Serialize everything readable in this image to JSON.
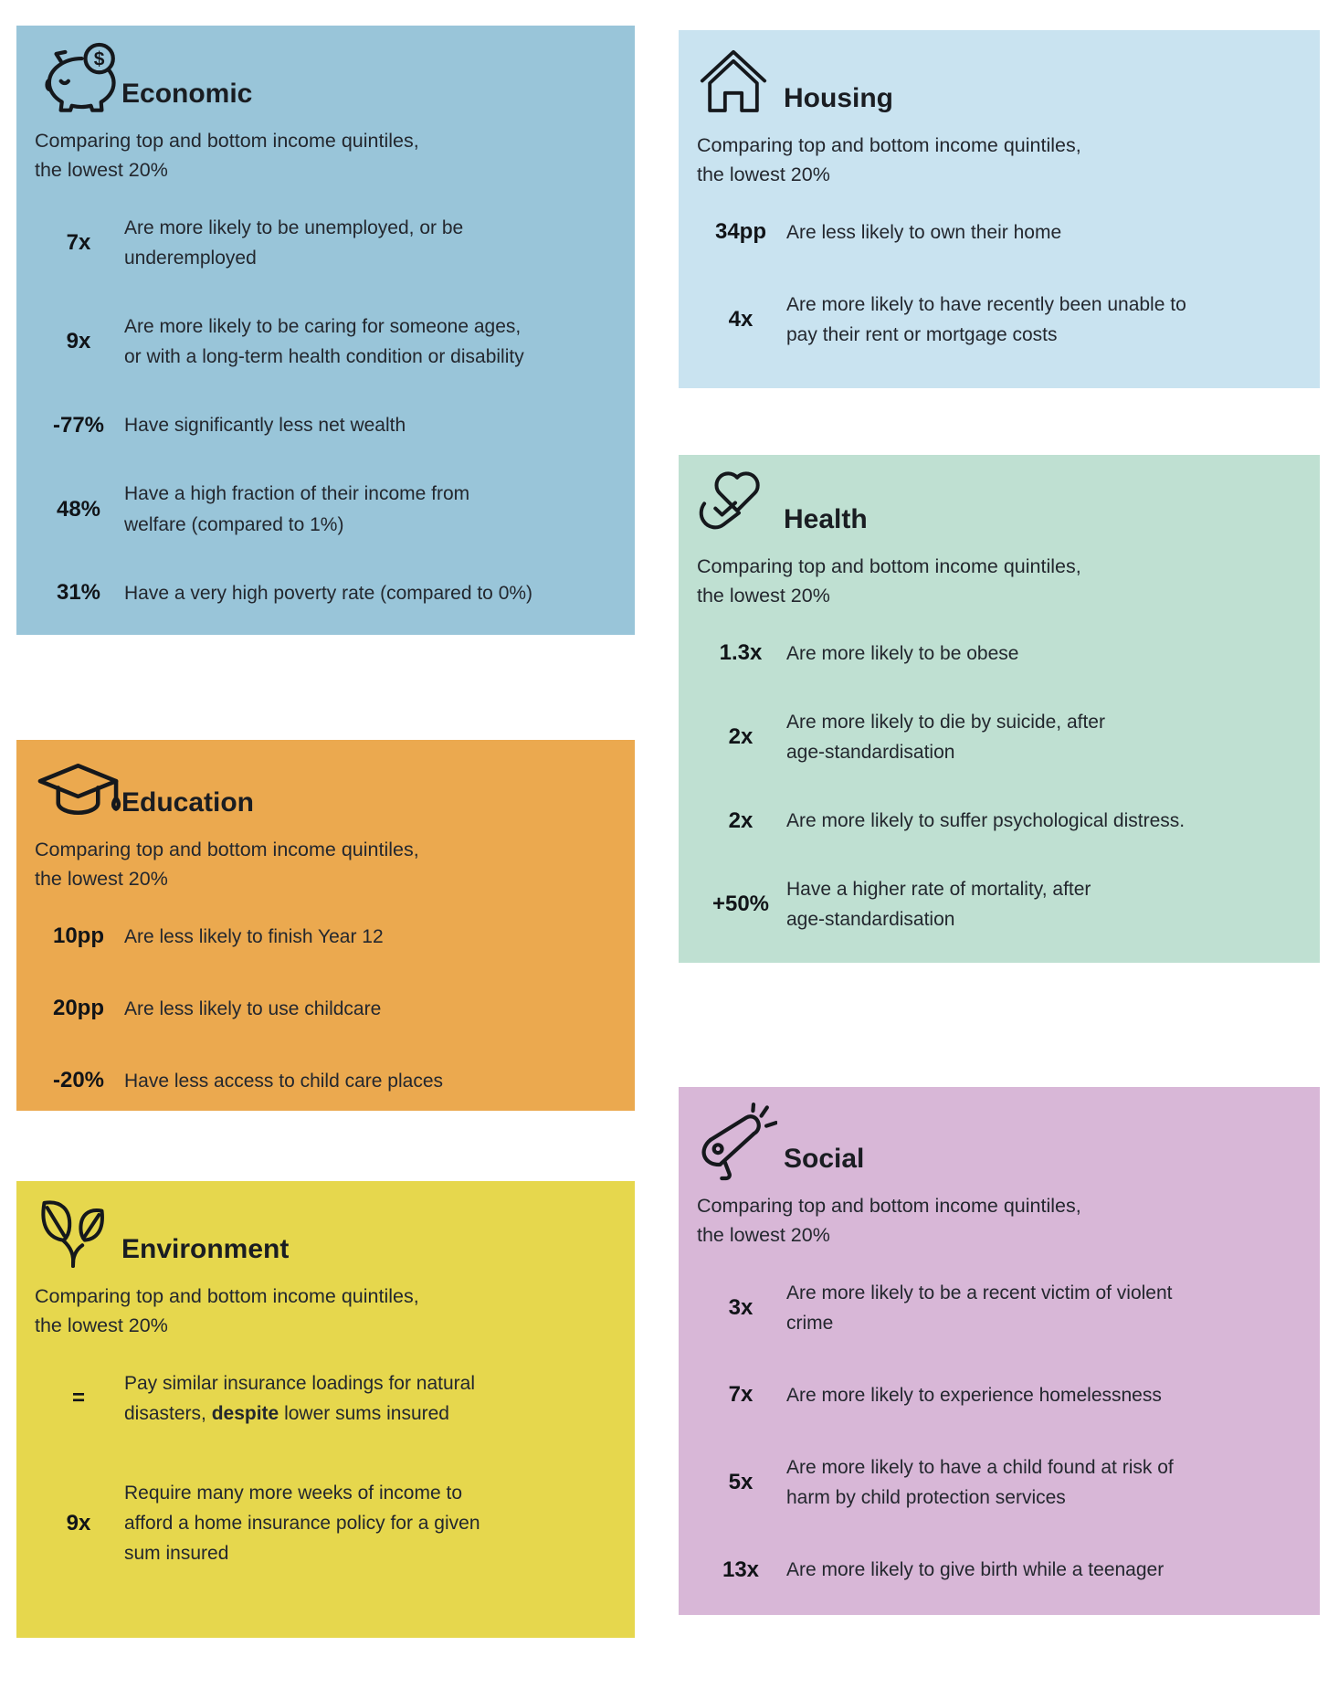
{
  "panels": [
    {
      "id": "economic",
      "title": "Economic",
      "icon": "piggy-bank-icon",
      "bg": "#99c5d9",
      "subtitle": "Comparing top and bottom income quintiles,\nthe lowest 20%",
      "rows": [
        {
          "stat": "7x",
          "desc": "Are more likely to be unemployed, or be\nunderemployed"
        },
        {
          "stat": "9x",
          "desc": "Are more likely to be caring for someone ages,\nor with a long-term health condition or disability"
        },
        {
          "stat": "-77%",
          "desc": "Have significantly less net wealth"
        },
        {
          "stat": "48%",
          "desc": "Have a high fraction of their income from\nwelfare (compared to 1%)"
        },
        {
          "stat": "31%",
          "desc": "Have a very high poverty rate (compared to 0%)"
        }
      ]
    },
    {
      "id": "housing",
      "title": "Housing",
      "icon": "home-icon",
      "bg": "#c9e3f0",
      "subtitle": "Comparing top and bottom income quintiles,\nthe lowest 20%",
      "rows": [
        {
          "stat": "34pp",
          "desc": "Are less likely to own their home"
        },
        {
          "stat": "4x",
          "desc": "Are more likely to have recently been unable to\npay their rent or mortgage costs"
        }
      ]
    },
    {
      "id": "education",
      "title": "Education",
      "icon": "graduation-cap-icon",
      "bg": "#eba94f",
      "subtitle": "Comparing top and bottom income quintiles,\nthe lowest 20%",
      "rows": [
        {
          "stat": "10pp",
          "desc": "Are less likely to finish Year 12"
        },
        {
          "stat": "20pp",
          "desc": "Are less likely to use childcare"
        },
        {
          "stat": "-20%",
          "desc": "Have less access to child care places"
        }
      ]
    },
    {
      "id": "health",
      "title": "Health",
      "icon": "heart-in-hand-icon",
      "bg": "#bfe0d2",
      "subtitle": "Comparing top and bottom income quintiles,\nthe lowest 20%",
      "rows": [
        {
          "stat": "1.3x",
          "desc": "Are more likely to be obese"
        },
        {
          "stat": "2x",
          "desc": "Are more likely to die by suicide, after\nage-standardisation"
        },
        {
          "stat": "2x",
          "desc": "Are more likely to suffer psychological distress."
        },
        {
          "stat": "+50%",
          "desc": "Have a higher rate of mortality, after\nage-standardisation"
        }
      ]
    },
    {
      "id": "environment",
      "title": "Environment",
      "icon": "leaves-icon",
      "bg": "#e6d74d",
      "subtitle": "Comparing top and bottom income quintiles,\nthe lowest 20%",
      "rows": [
        {
          "stat": "=",
          "desc": "Pay similar insurance loadings for natural\ndisasters, **despite** lower sums insured"
        },
        {
          "stat": "9x",
          "desc": "Require many more weeks of income to\nafford a home insurance policy for a given\nsum insured"
        }
      ]
    },
    {
      "id": "social",
      "title": "Social",
      "icon": "megaphone-icon",
      "bg": "#d8b7d7",
      "subtitle": "Comparing top and bottom income quintiles,\nthe lowest 20%",
      "rows": [
        {
          "stat": "3x",
          "desc": "Are more likely to be a recent victim of violent\ncrime"
        },
        {
          "stat": "7x",
          "desc": "Are more likely to experience homelessness"
        },
        {
          "stat": "5x",
          "desc": "Are more likely to have a child found at risk of\nharm by child protection services"
        },
        {
          "stat": "13x",
          "desc": "Are more likely to give birth while a teenager"
        }
      ]
    }
  ]
}
